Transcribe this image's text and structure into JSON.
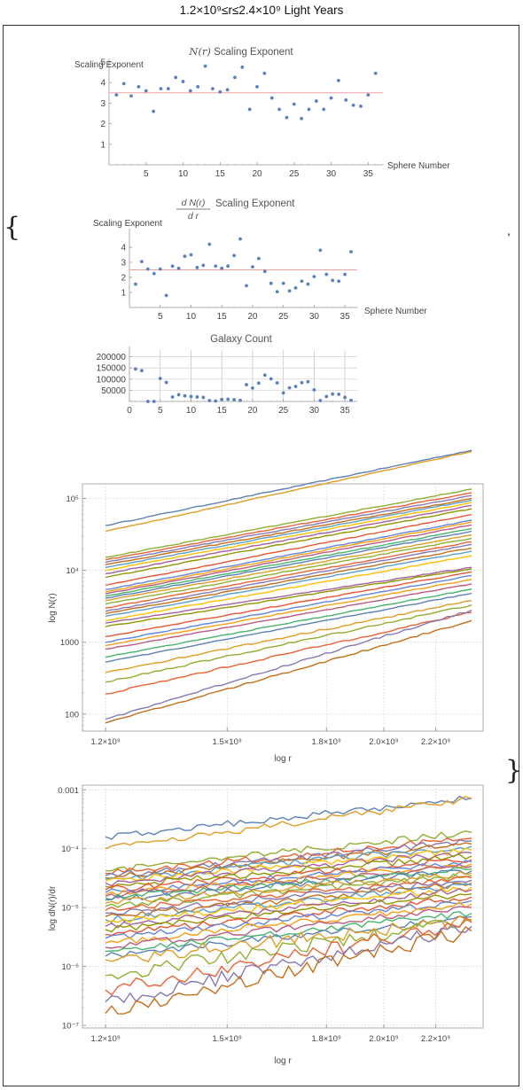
{
  "page": {
    "title": "1.2×10⁹≤r≤2.4×10⁹ Light Years",
    "brace_open": "{",
    "brace_close": "}",
    "separator": ","
  },
  "colors": {
    "points": "#5b80c0",
    "refline": "#f0a0a0",
    "grid": "#c8c8c8",
    "series": [
      "#5e81b5",
      "#e19c24",
      "#8fb032",
      "#eb6235",
      "#8778b3",
      "#c56e1a",
      "#5d9ec7",
      "#ffbf00",
      "#a5609d",
      "#929600",
      "#e95536",
      "#6685d9",
      "#f89f13",
      "#bc5b80",
      "#47b66d"
    ]
  },
  "chart_data": [
    {
      "type": "scatter",
      "title": "N(r) Scaling Exponent",
      "title_math": "N(r)",
      "title_text": "Scaling Exponent",
      "xlabel": "Sphere Number",
      "ylabel": "Scaling Exponent",
      "xlim": [
        0,
        37
      ],
      "ylim": [
        0,
        5
      ],
      "xticks": [
        5,
        10,
        15,
        20,
        25,
        30,
        35
      ],
      "yticks": [
        1,
        2,
        3,
        4,
        5
      ],
      "reference_line": 3.5,
      "x": [
        1,
        2,
        3,
        4,
        5,
        6,
        7,
        8,
        9,
        10,
        11,
        12,
        13,
        14,
        15,
        16,
        17,
        18,
        19,
        20,
        21,
        22,
        23,
        24,
        25,
        26,
        27,
        28,
        29,
        30,
        31,
        32,
        33,
        34,
        35,
        36
      ],
      "y": [
        3.4,
        3.95,
        3.35,
        3.8,
        3.6,
        2.6,
        3.7,
        3.7,
        4.25,
        4.05,
        3.6,
        3.8,
        4.8,
        3.7,
        3.55,
        3.65,
        4.25,
        4.75,
        2.7,
        3.8,
        4.45,
        3.25,
        2.7,
        2.3,
        2.95,
        2.25,
        2.7,
        3.1,
        2.7,
        3.25,
        4.1,
        3.15,
        2.9,
        2.85,
        3.4,
        4.45
      ]
    },
    {
      "type": "scatter",
      "title": "dN(r)/dr Scaling Exponent",
      "title_num": "d N(r)",
      "title_den": "d r",
      "title_text": "Scaling Exponent",
      "xlabel": "Sphere Number",
      "ylabel": "Scaling Exponent",
      "xlim": [
        0,
        37
      ],
      "ylim": [
        0,
        5
      ],
      "xticks": [
        5,
        10,
        15,
        20,
        25,
        30,
        35
      ],
      "yticks": [
        1,
        2,
        3,
        4
      ],
      "reference_line": 2.5,
      "x": [
        1,
        2,
        3,
        4,
        5,
        6,
        7,
        8,
        9,
        10,
        11,
        12,
        13,
        14,
        15,
        16,
        17,
        18,
        19,
        20,
        21,
        22,
        23,
        24,
        25,
        26,
        27,
        28,
        29,
        30,
        31,
        32,
        33,
        34,
        35,
        36
      ],
      "y": [
        1.55,
        3.05,
        2.55,
        2.25,
        2.55,
        0.8,
        2.75,
        2.6,
        3.4,
        3.5,
        2.65,
        2.8,
        4.2,
        2.75,
        2.6,
        2.75,
        3.45,
        4.55,
        1.45,
        2.7,
        3.25,
        2.4,
        1.6,
        1.05,
        1.6,
        1.1,
        1.3,
        1.75,
        1.55,
        2.05,
        3.8,
        2.2,
        1.8,
        1.75,
        2.2,
        3.7
      ]
    },
    {
      "type": "scatter",
      "title": "Galaxy Count",
      "xlim": [
        0,
        37
      ],
      "ylim": [
        0,
        230000
      ],
      "xticks": [
        0,
        5,
        10,
        15,
        20,
        25,
        30,
        35
      ],
      "yticks": [
        50000,
        100000,
        150000,
        200000
      ],
      "ytick_labels": [
        "50000",
        "100000",
        "150000",
        "200000"
      ],
      "xticklabels_shown": [
        "0",
        "5",
        "10",
        "15",
        "20",
        "25",
        "30",
        "35"
      ],
      "grid": true,
      "x": [
        1,
        2,
        3,
        4,
        5,
        6,
        7,
        8,
        9,
        10,
        11,
        12,
        13,
        14,
        15,
        16,
        17,
        18,
        19,
        20,
        21,
        22,
        23,
        24,
        25,
        26,
        27,
        28,
        29,
        30,
        31,
        32,
        33,
        34,
        35,
        36
      ],
      "y": [
        145000,
        138000,
        0,
        0,
        103000,
        85000,
        20000,
        30000,
        25000,
        22000,
        20000,
        18000,
        4000,
        2000,
        9000,
        10000,
        8000,
        5000,
        75000,
        60000,
        82000,
        118000,
        101000,
        83000,
        38000,
        61000,
        67000,
        84000,
        88000,
        52000,
        4000,
        22000,
        33000,
        32000,
        18000,
        5000
      ]
    },
    {
      "type": "line",
      "xlabel": "log r",
      "ylabel": "log N(r)",
      "xscale": "log",
      "yscale": "log",
      "xlim": [
        1150000000.0,
        2400000000.0
      ],
      "ylim": [
        58,
        160000
      ],
      "xticks": [
        1200000000.0,
        1500000000.0,
        1800000000.0,
        2000000000.0,
        2200000000.0
      ],
      "xtick_labels": [
        "1.2×10⁹",
        "1.5×10⁹",
        "1.8×10⁹",
        "2.0×10⁹",
        "2.2×10⁹"
      ],
      "yticks": [
        100,
        1000,
        10000,
        100000
      ],
      "ytick_labels": [
        "100",
        "1000",
        "10⁴",
        "10⁵"
      ],
      "series_count": 36,
      "start_values": [
        42000,
        35000,
        15200,
        14000,
        13000,
        12000,
        11000,
        10000,
        9000,
        8000,
        6200,
        5400,
        5000,
        4700,
        4400,
        4100,
        3800,
        3400,
        3000,
        2700,
        2500,
        2300,
        2000,
        1850,
        1650,
        1200,
        1000,
        900,
        800,
        620,
        530,
        380,
        280,
        190,
        85,
        75
      ],
      "end_values": [
        470000,
        450000,
        135000,
        120000,
        110000,
        100000,
        95000,
        88000,
        80000,
        72000,
        60000,
        50000,
        47000,
        43000,
        38000,
        35000,
        31000,
        28000,
        25000,
        23000,
        20500,
        18500,
        16000,
        11000,
        10500,
        9500,
        8500,
        7500,
        6500,
        5500,
        4800,
        3800,
        3300,
        2600,
        2800,
        2000
      ]
    },
    {
      "type": "line",
      "xlabel": "log r",
      "ylabel": "log dN(r)/dr",
      "xscale": "log",
      "yscale": "log",
      "xlim": [
        1150000000.0,
        2400000000.0
      ],
      "ylim": [
        9e-08,
        0.0012
      ],
      "xticks": [
        1200000000.0,
        1500000000.0,
        1800000000.0,
        2000000000.0,
        2200000000.0
      ],
      "xtick_labels": [
        "1.2×10⁹",
        "1.5×10⁹",
        "1.8×10⁹",
        "2.0×10⁹",
        "2.2×10⁹"
      ],
      "yticks": [
        1e-07,
        1e-06,
        1e-05,
        0.0001,
        0.001
      ],
      "ytick_labels": [
        "10⁻⁷",
        "10⁻⁶",
        "10⁻⁵",
        "10⁻⁴",
        "0.001"
      ],
      "series_count": 36,
      "start_values": [
        0.00016,
        0.0001,
        4.2e-05,
        3.8e-05,
        3.5e-05,
        3.2e-05,
        3e-05,
        2.8e-05,
        2.6e-05,
        2.3e-05,
        2e-05,
        1.8e-05,
        1.65e-05,
        1.55e-05,
        1.45e-05,
        1.35e-05,
        1.2e-05,
        1.05e-05,
        9e-06,
        8e-06,
        7e-06,
        6.2e-06,
        5.5e-06,
        4.8e-06,
        4.2e-06,
        3.5e-06,
        3e-06,
        2.5e-06,
        2.1e-06,
        1.8e-06,
        1.5e-06,
        1.3e-06,
        7e-07,
        4e-07,
        2.5e-07,
        1.6e-07
      ],
      "end_values": [
        0.00072,
        0.0007,
        0.00019,
        0.00015,
        0.000135,
        0.00012,
        0.00011,
        9.5e-05,
        8.5e-05,
        7.5e-05,
        6.5e-05,
        6e-05,
        5.5e-05,
        5e-05,
        4.5e-05,
        4.2e-05,
        3.8e-05,
        3.5e-05,
        3.2e-05,
        2.9e-05,
        2.6e-05,
        2.4e-05,
        2.2e-05,
        2e-05,
        1.7e-05,
        1.5e-05,
        1.3e-05,
        1.15e-05,
        1e-05,
        8e-06,
        7e-06,
        6.2e-06,
        6e-06,
        5.5e-06,
        4.8e-06,
        4e-06
      ]
    }
  ]
}
